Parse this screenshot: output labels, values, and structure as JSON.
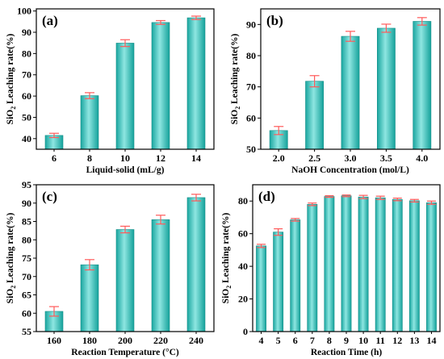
{
  "colors": {
    "bar": "#22b8b0",
    "error": "#ff5a5a",
    "axis": "#000000"
  },
  "chart_data": [
    {
      "label": "(a)",
      "type": "bar",
      "categories": [
        "6",
        "8",
        "10",
        "12",
        "14"
      ],
      "values": [
        41.5,
        60.2,
        84.9,
        94.6,
        96.8
      ],
      "errors": [
        1.0,
        1.4,
        1.6,
        0.9,
        0.8
      ],
      "xlabel": "Liquid-solid (mL/g)",
      "ylabel_pre": "SiO",
      "ylabel_sub": "2",
      "ylabel_post": " Leaching rate(%)",
      "ylim": [
        35,
        101
      ],
      "yticks": [
        40,
        50,
        60,
        70,
        80,
        90,
        100
      ],
      "grid": false
    },
    {
      "label": "(b)",
      "type": "bar",
      "categories": [
        "2.0",
        "2.5",
        "3.0",
        "3.5",
        "4.0"
      ],
      "values": [
        56.0,
        71.8,
        86.2,
        88.8,
        91.0
      ],
      "errors": [
        1.3,
        1.8,
        1.6,
        1.3,
        1.2
      ],
      "xlabel": "NaOH Concentration (mol/L)",
      "ylabel_pre": "SiO",
      "ylabel_sub": "2",
      "ylabel_post": " Leaching rate(%)",
      "ylim": [
        50,
        95
      ],
      "yticks": [
        50,
        60,
        70,
        80,
        90
      ],
      "grid": false
    },
    {
      "label": "(c)",
      "type": "bar",
      "categories": [
        "160",
        "180",
        "200",
        "220",
        "240"
      ],
      "values": [
        60.5,
        73.2,
        82.8,
        85.5,
        91.5
      ],
      "errors": [
        1.3,
        1.4,
        0.9,
        1.2,
        0.9
      ],
      "xlabel": "Reaction Temperature (°C)",
      "ylabel_pre": "SiO",
      "ylabel_sub": "2",
      "ylabel_post": " Leaching rate(%)",
      "ylim": [
        55,
        95
      ],
      "yticks": [
        55,
        60,
        65,
        70,
        75,
        80,
        85,
        90,
        95
      ],
      "grid": false
    },
    {
      "label": "(d)",
      "type": "bar",
      "categories": [
        "4",
        "5",
        "6",
        "7",
        "8",
        "9",
        "10",
        "11",
        "12",
        "13",
        "14"
      ],
      "values": [
        52.5,
        61.0,
        68.5,
        78.0,
        82.8,
        83.2,
        82.5,
        82.0,
        81.0,
        80.2,
        79.0
      ],
      "errors": [
        1.0,
        2.0,
        0.8,
        0.8,
        0.5,
        0.5,
        1.0,
        1.0,
        0.8,
        0.8,
        1.0
      ],
      "xlabel": "Reaction Time (h)",
      "ylabel_pre": "SiO",
      "ylabel_sub": "2",
      "ylabel_post": " Leaching rate(%)",
      "ylim": [
        0,
        90
      ],
      "yticks": [
        0,
        20,
        40,
        60,
        80
      ],
      "grid": false
    }
  ]
}
